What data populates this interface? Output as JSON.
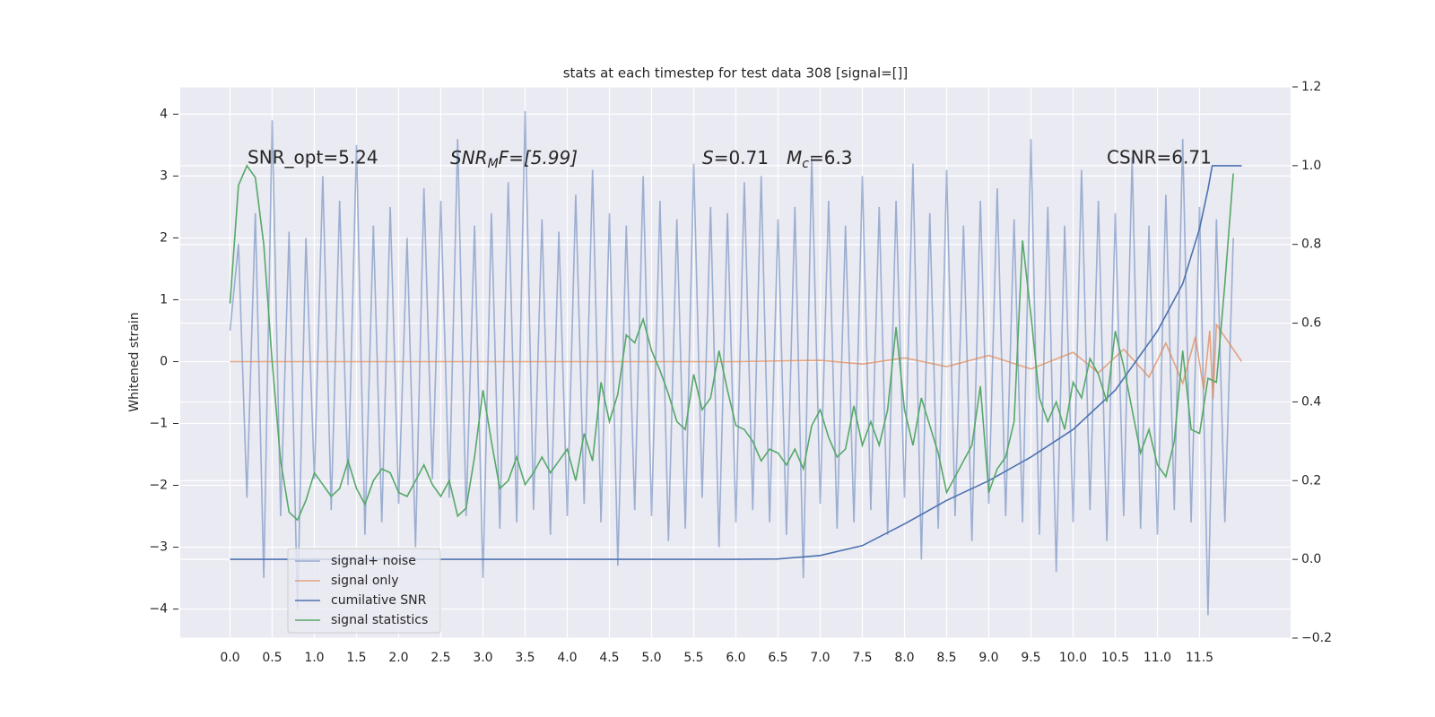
{
  "chart_data": {
    "type": "line",
    "title": "stats at each timestep for test data 308 [signal=[]]",
    "ylabel": "Whitened strain",
    "annotations": [
      "SNR_opt=5.24",
      {
        "main": "SNR",
        "sub": "M",
        "tail": "F=[5.99]"
      },
      {
        "main": "S",
        "tail": "=0.71"
      },
      {
        "main": "M",
        "sub": "c",
        "tail": "=6.3"
      },
      "CSNR=6.71"
    ],
    "xlim": [
      -0.59,
      12.58
    ],
    "ylim": [
      -4.47,
      4.44
    ],
    "y2lim": [
      -0.2,
      1.2
    ],
    "xticks": [
      {
        "value": 0,
        "label": "0.0"
      },
      0.5,
      {
        "value": 1,
        "label": "1.0"
      },
      1.5,
      {
        "value": 2,
        "label": "2.0"
      },
      2.5,
      {
        "value": 3,
        "label": "3.0"
      },
      3.5,
      {
        "value": 4,
        "label": "4.0"
      },
      4.5,
      {
        "value": 5,
        "label": "5.0"
      },
      5.5,
      {
        "value": 6,
        "label": "6.0"
      },
      6.5,
      {
        "value": 7,
        "label": "7.0"
      },
      7.5,
      {
        "value": 8,
        "label": "8.0"
      },
      8.5,
      {
        "value": 9,
        "label": "9.0"
      },
      9.5,
      {
        "value": 10,
        "label": "10.0"
      },
      10.5,
      {
        "value": 11,
        "label": "11.0"
      },
      11.5
    ],
    "yticks": [
      {
        "value": -4,
        "label": "−4"
      },
      {
        "value": -3,
        "label": "−3"
      },
      {
        "value": -2,
        "label": "−2"
      },
      {
        "value": -1,
        "label": "−1"
      },
      0,
      1,
      2,
      3,
      4
    ],
    "y2ticks": [
      {
        "value": -0.2,
        "label": "−0.2"
      },
      {
        "value": 0,
        "label": "0.0"
      },
      0.2,
      0.4,
      0.6,
      0.8,
      {
        "value": 1,
        "label": "1.0"
      },
      1.2
    ],
    "grid": true,
    "legend": "lower left",
    "background": "#eaeaf2",
    "x": [
      0,
      0.1,
      0.2,
      0.3,
      0.4,
      0.5,
      0.6,
      0.7,
      0.8,
      0.9,
      1,
      1.1,
      1.2,
      1.3,
      1.4,
      1.5,
      1.6,
      1.7,
      1.8,
      1.9,
      2,
      2.1,
      2.2,
      2.3,
      2.4,
      2.5,
      2.6,
      2.7,
      2.8,
      2.9,
      3,
      3.1,
      3.2,
      3.3,
      3.4,
      3.5,
      3.6,
      3.7,
      3.8,
      3.9,
      4,
      4.1,
      4.2,
      4.3,
      4.4,
      4.5,
      4.6,
      4.7,
      4.8,
      4.9,
      5,
      5.1,
      5.2,
      5.3,
      5.4,
      5.5,
      5.6,
      5.7,
      5.8,
      5.9,
      6,
      6.1,
      6.2,
      6.3,
      6.4,
      6.5,
      6.6,
      6.7,
      6.8,
      6.9,
      7,
      7.1,
      7.2,
      7.3,
      7.4,
      7.5,
      7.6,
      7.7,
      7.8,
      7.9,
      8,
      8.1,
      8.2,
      8.3,
      8.4,
      8.5,
      8.6,
      8.7,
      8.8,
      8.9,
      9,
      9.1,
      9.2,
      9.3,
      9.4,
      9.5,
      9.6,
      9.7,
      9.8,
      9.9,
      10,
      10.1,
      10.2,
      10.3,
      10.4,
      10.5,
      10.6,
      10.7,
      10.8,
      10.9,
      11,
      11.1,
      11.2,
      11.3,
      11.4,
      11.5,
      11.6,
      11.7,
      11.8,
      11.9
    ],
    "series": [
      {
        "name": "signal+ noise",
        "color": "#4c72b0",
        "opacity": 0.5,
        "values": [
          0.5,
          1.9,
          -2.2,
          2.4,
          -3.5,
          3.9,
          -2.5,
          2.1,
          -4.0,
          2.0,
          -1.9,
          3.0,
          -2.4,
          2.6,
          -2.0,
          3.5,
          -2.8,
          2.2,
          -2.6,
          2.5,
          -2.3,
          2.0,
          -3.0,
          2.8,
          -1.9,
          2.6,
          -2.2,
          3.6,
          -2.5,
          2.2,
          -3.5,
          2.4,
          -2.7,
          2.9,
          -2.6,
          4.05,
          -2.4,
          2.3,
          -2.8,
          2.1,
          -2.5,
          2.7,
          -2.3,
          3.1,
          -2.6,
          2.4,
          -3.3,
          2.2,
          -2.4,
          3.0,
          -2.5,
          2.6,
          -2.9,
          2.3,
          -2.7,
          3.2,
          -2.2,
          2.5,
          -3.0,
          2.4,
          -2.6,
          2.9,
          -2.4,
          3.0,
          -2.6,
          2.3,
          -2.8,
          2.5,
          -3.5,
          3.3,
          -2.3,
          2.6,
          -2.7,
          2.2,
          -2.6,
          3.0,
          -2.4,
          2.5,
          -2.8,
          2.6,
          -2.2,
          3.2,
          -3.2,
          2.4,
          -2.7,
          3.1,
          -2.5,
          2.2,
          -2.9,
          2.6,
          -2.3,
          2.8,
          -2.5,
          2.3,
          -2.6,
          3.6,
          -2.8,
          2.5,
          -3.4,
          2.2,
          -2.6,
          3.1,
          -2.4,
          2.6,
          -2.9,
          2.4,
          -2.5,
          3.3,
          -2.7,
          2.2,
          -2.8,
          2.7,
          -2.4,
          3.6,
          -2.6,
          2.5,
          -4.1,
          2.3,
          -2.6,
          2.0
        ]
      },
      {
        "name": "signal only",
        "color": "#dd8452",
        "opacity": 0.7,
        "x": [
          0,
          1,
          2,
          3,
          4,
          5,
          6,
          7,
          7.5,
          8,
          8.5,
          9,
          9.5,
          10,
          10.3,
          10.6,
          10.9,
          11.1,
          11.3,
          11.45,
          11.55,
          11.62,
          11.66,
          11.7,
          12
        ],
        "values": [
          0,
          0,
          0,
          0,
          0,
          0,
          0,
          0.02,
          -0.04,
          0.06,
          -0.08,
          0.1,
          -0.12,
          0.15,
          -0.18,
          0.2,
          -0.25,
          0.3,
          -0.35,
          0.4,
          -0.45,
          0.5,
          -0.6,
          0.6,
          0
        ]
      },
      {
        "name": "cumilative SNR",
        "color": "#4c72b0",
        "axis": "y2",
        "opacity": 1,
        "x": [
          0,
          6,
          6.5,
          7,
          7.5,
          8,
          8.5,
          9,
          9.5,
          10,
          10.5,
          11,
          11.3,
          11.5,
          11.6,
          11.65,
          12
        ],
        "values": [
          0,
          0,
          0.001,
          0.01,
          0.035,
          0.09,
          0.15,
          0.2,
          0.26,
          0.33,
          0.43,
          0.58,
          0.7,
          0.84,
          0.94,
          1,
          1
        ]
      },
      {
        "name": "signal statistics",
        "color": "#55a868",
        "axis": "y2",
        "opacity": 1,
        "values": [
          0.65,
          0.95,
          1.0,
          0.97,
          0.8,
          0.5,
          0.25,
          0.12,
          0.1,
          0.15,
          0.22,
          0.19,
          0.16,
          0.18,
          0.25,
          0.18,
          0.14,
          0.2,
          0.23,
          0.22,
          0.17,
          0.16,
          0.2,
          0.24,
          0.19,
          0.16,
          0.2,
          0.11,
          0.13,
          0.26,
          0.43,
          0.3,
          0.18,
          0.2,
          0.26,
          0.19,
          0.22,
          0.26,
          0.22,
          0.25,
          0.28,
          0.2,
          0.32,
          0.25,
          0.45,
          0.35,
          0.42,
          0.57,
          0.55,
          0.61,
          0.53,
          0.48,
          0.42,
          0.35,
          0.33,
          0.47,
          0.38,
          0.41,
          0.53,
          0.43,
          0.34,
          0.33,
          0.3,
          0.25,
          0.28,
          0.27,
          0.24,
          0.28,
          0.23,
          0.34,
          0.38,
          0.31,
          0.26,
          0.28,
          0.39,
          0.29,
          0.35,
          0.29,
          0.38,
          0.59,
          0.38,
          0.29,
          0.41,
          0.34,
          0.27,
          0.17,
          0.21,
          0.25,
          0.29,
          0.44,
          0.17,
          0.23,
          0.26,
          0.35,
          0.81,
          0.62,
          0.41,
          0.35,
          0.4,
          0.33,
          0.45,
          0.41,
          0.51,
          0.47,
          0.4,
          0.58,
          0.49,
          0.38,
          0.27,
          0.33,
          0.24,
          0.21,
          0.3,
          0.53,
          0.33,
          0.32,
          0.46,
          0.45,
          0.7,
          0.98
        ]
      }
    ]
  }
}
